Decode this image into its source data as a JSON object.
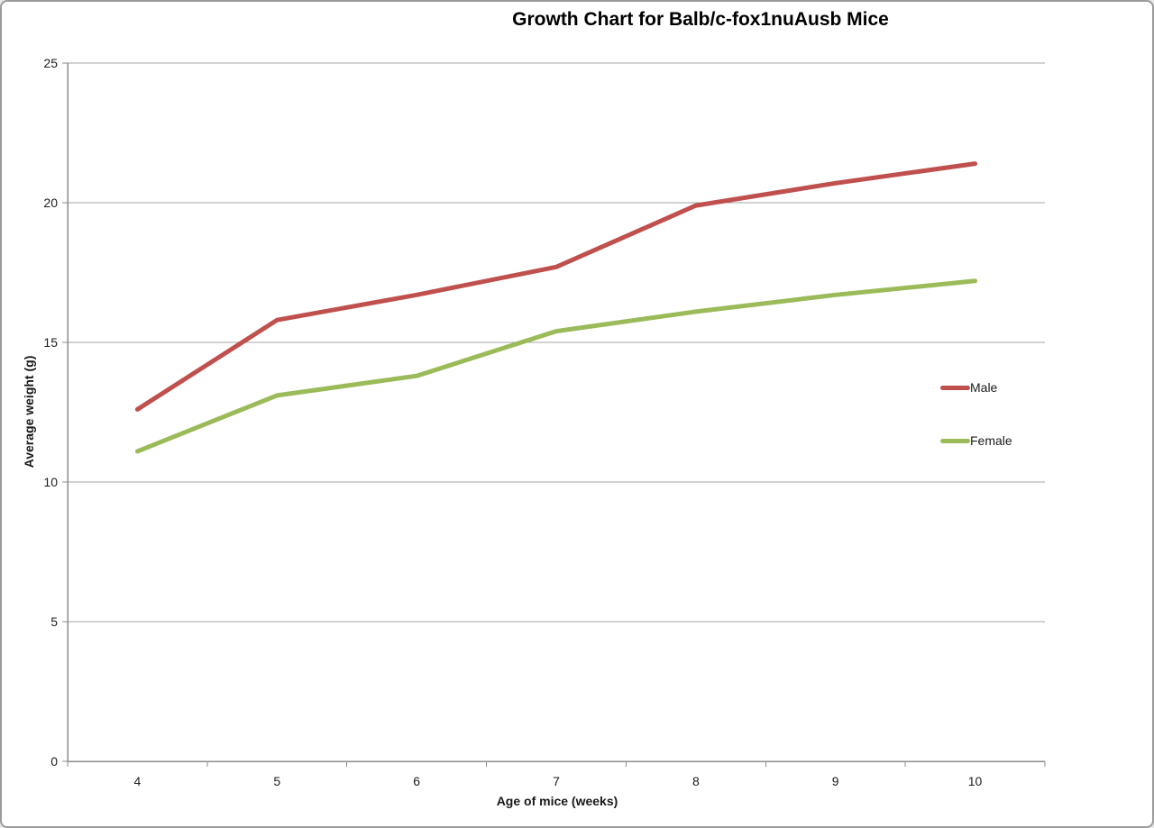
{
  "chart_data": {
    "type": "line",
    "title": "Growth Chart for Balb/c-fox1nuAusb Mice",
    "xlabel": "Age of mice (weeks)",
    "ylabel": "Average weight (g)",
    "categories": [
      "4",
      "5",
      "6",
      "7",
      "8",
      "9",
      "10"
    ],
    "series": [
      {
        "name": "Male",
        "color": "#C0504D",
        "values": [
          12.6,
          15.8,
          16.7,
          17.7,
          19.9,
          20.7,
          21.4
        ]
      },
      {
        "name": "Female",
        "color": "#9BBB59",
        "values": [
          11.1,
          13.1,
          13.8,
          15.4,
          16.1,
          16.7,
          17.2
        ]
      }
    ],
    "ylim": [
      0,
      25
    ],
    "yticks": [
      "0",
      "5",
      "10",
      "15",
      "20",
      "25"
    ],
    "grid": true,
    "legend_position": "right-inside",
    "colors": {
      "gridline": "#A6A6A6",
      "axis": "#8C8C8C",
      "text": "#1c1c1c",
      "background": "#ffffff"
    }
  }
}
